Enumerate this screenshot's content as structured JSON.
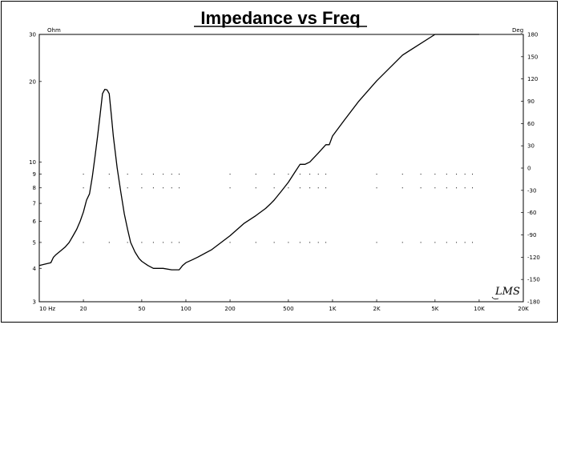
{
  "chart_data": {
    "type": "line",
    "title": "Impedance vs Freq",
    "x_scale": "log",
    "y_scale": "log",
    "xlim": [
      10,
      20000
    ],
    "ylim": [
      3,
      30
    ],
    "y2lim": [
      -180,
      180
    ],
    "y_unit": "Ohm",
    "y2_unit": "Deg",
    "grid": "dotted",
    "x_ticks": [
      {
        "value": 10,
        "label": "10  Hz"
      },
      {
        "value": 20,
        "label": "20"
      },
      {
        "value": 50,
        "label": "50"
      },
      {
        "value": 100,
        "label": "100"
      },
      {
        "value": 200,
        "label": "200"
      },
      {
        "value": 500,
        "label": "500"
      },
      {
        "value": 1000,
        "label": "1K"
      },
      {
        "value": 2000,
        "label": "2K"
      },
      {
        "value": 5000,
        "label": "5K"
      },
      {
        "value": 10000,
        "label": "10K"
      },
      {
        "value": 20000,
        "label": "20K"
      }
    ],
    "y_ticks": [
      {
        "value": 3,
        "label": "3"
      },
      {
        "value": 4,
        "label": "4"
      },
      {
        "value": 5,
        "label": "5"
      },
      {
        "value": 6,
        "label": "6"
      },
      {
        "value": 7,
        "label": "7"
      },
      {
        "value": 8,
        "label": "8"
      },
      {
        "value": 9,
        "label": "9"
      },
      {
        "value": 10,
        "label": "10"
      },
      {
        "value": 20,
        "label": "20"
      },
      {
        "value": 30,
        "label": "30"
      }
    ],
    "y2_ticks": [
      {
        "value": 180,
        "label": "180"
      },
      {
        "value": 150,
        "label": "150"
      },
      {
        "value": 120,
        "label": "120"
      },
      {
        "value": 90,
        "label": "90"
      },
      {
        "value": 60,
        "label": "60"
      },
      {
        "value": 30,
        "label": "30"
      },
      {
        "value": 0,
        "label": "0"
      },
      {
        "value": -30,
        "label": "-30"
      },
      {
        "value": -60,
        "label": "-60"
      },
      {
        "value": -90,
        "label": "-90"
      },
      {
        "value": -120,
        "label": "-120"
      },
      {
        "value": -150,
        "label": "-150"
      },
      {
        "value": -180,
        "label": "-180"
      }
    ],
    "series": [
      {
        "color": "#000000",
        "x": [
          10,
          11,
          12,
          12.5,
          13,
          14,
          15,
          16,
          17,
          18,
          19,
          20,
          21,
          22,
          23,
          24,
          25,
          26,
          27,
          28,
          29,
          30,
          31,
          32,
          34,
          36,
          38,
          40,
          42,
          45,
          48,
          50,
          55,
          60,
          65,
          70,
          80,
          90,
          95,
          100,
          110,
          120,
          150,
          200,
          250,
          300,
          350,
          380,
          400,
          450,
          500,
          550,
          600,
          650,
          700,
          800,
          900,
          950,
          1000,
          1200,
          1500,
          2000,
          3000,
          5000,
          5500,
          6000,
          8000,
          10000
        ],
        "values": [
          4.1,
          4.15,
          4.2,
          4.4,
          4.5,
          4.65,
          4.8,
          5.0,
          5.3,
          5.6,
          6.0,
          6.5,
          7.2,
          7.6,
          8.8,
          10.5,
          12.5,
          15.0,
          18.0,
          18.7,
          18.6,
          18.0,
          15.0,
          12.5,
          9.5,
          7.7,
          6.4,
          5.6,
          5.0,
          4.6,
          4.35,
          4.25,
          4.1,
          4.0,
          4.0,
          4.0,
          3.95,
          3.95,
          4.1,
          4.2,
          4.3,
          4.4,
          4.7,
          5.3,
          5.9,
          6.3,
          6.7,
          7.0,
          7.2,
          7.8,
          8.4,
          9.1,
          9.8,
          9.8,
          10.0,
          10.8,
          11.6,
          11.6,
          12.5,
          14.3,
          16.8,
          20.1,
          25.1,
          30.0,
          30.0,
          30.0,
          30.0,
          30.0
        ]
      }
    ]
  },
  "logo_text": "LMS"
}
